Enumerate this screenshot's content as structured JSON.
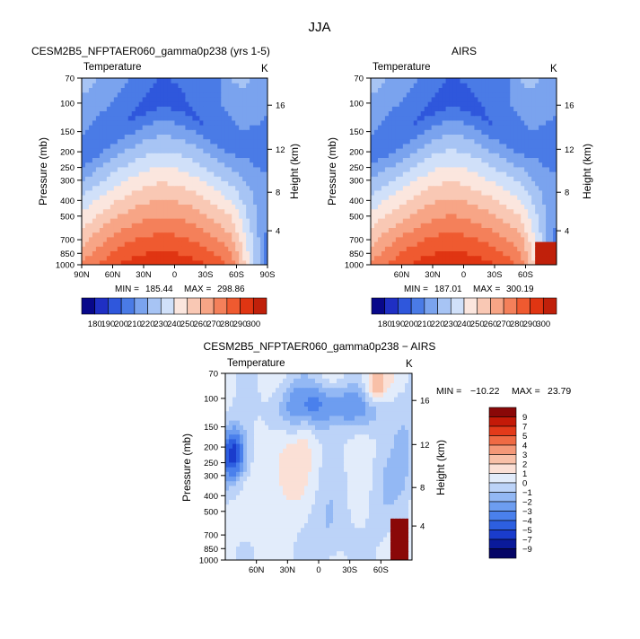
{
  "page": {
    "title": "JJA"
  },
  "colors": {
    "abs_levels": [
      "#08088a",
      "#1f2fc4",
      "#2f57dc",
      "#4a7be6",
      "#7aa3ee",
      "#a7c4f4",
      "#d0e0f9",
      "#fbe6de",
      "#f9c8b4",
      "#f7a586",
      "#f4805a",
      "#ef5a30",
      "#e03512",
      "#c0200a",
      "#7a0a06"
    ],
    "diff_levels": [
      "#050566",
      "#0a1a9a",
      "#1a3ccc",
      "#2d5fe0",
      "#4a80ec",
      "#6d9df0",
      "#93b8f4",
      "#bcd3f8",
      "#e2ecfb",
      "#fbe0d6",
      "#f8c0a8",
      "#f49878",
      "#ef6a44",
      "#e33a1a",
      "#c41a08",
      "#8a0808"
    ]
  },
  "chart_data": [
    {
      "type": "heatmap",
      "id": "model",
      "title": "CESM2B5_NFPTAER060_gamma0p238 (yrs 1-5)",
      "subtitle_left": "Temperature",
      "subtitle_right": "K",
      "ylabel": "Pressure (mb)",
      "ylabel_right": "Height (km)",
      "x_ticks": [
        "90N",
        "60N",
        "30N",
        "0",
        "30S",
        "60S",
        "90S"
      ],
      "y_ticks": [
        "70",
        "100",
        "150",
        "200",
        "250",
        "300",
        "400",
        "500",
        "700",
        "850",
        "1000"
      ],
      "y_ticks_right": [
        "16",
        "12",
        "8",
        "4"
      ],
      "xlim": [
        90,
        -90
      ],
      "ylim": [
        1000,
        70
      ],
      "stats": {
        "min_label": "MIN =",
        "min": "185.44",
        "max_label": "MAX =",
        "max": "298.86"
      },
      "colorbar_labels": [
        "180",
        "190",
        "200",
        "210",
        "220",
        "230",
        "240",
        "250",
        "260",
        "270",
        "280",
        "290",
        "300"
      ],
      "levels": [
        180,
        190,
        200,
        210,
        220,
        230,
        240,
        250,
        260,
        270,
        280,
        290,
        300
      ]
    },
    {
      "type": "heatmap",
      "id": "obs",
      "title": "AIRS",
      "subtitle_left": "Temperature",
      "subtitle_right": "K",
      "ylabel": "Pressure (mb)",
      "ylabel_right": "Height (km)",
      "x_ticks": [
        "60N",
        "30N",
        "0",
        "30S",
        "60S"
      ],
      "y_ticks": [
        "70",
        "100",
        "150",
        "200",
        "250",
        "300",
        "400",
        "500",
        "700",
        "850",
        "1000"
      ],
      "y_ticks_right": [
        "16",
        "12",
        "8",
        "4"
      ],
      "xlim": [
        90,
        -90
      ],
      "ylim": [
        1000,
        70
      ],
      "stats": {
        "min_label": "MIN =",
        "min": "187.01",
        "max_label": "MAX =",
        "max": "300.19"
      },
      "colorbar_labels": [
        "180",
        "190",
        "200",
        "210",
        "220",
        "230",
        "240",
        "250",
        "260",
        "270",
        "280",
        "290",
        "300"
      ],
      "levels": [
        180,
        190,
        200,
        210,
        220,
        230,
        240,
        250,
        260,
        270,
        280,
        290,
        300
      ]
    },
    {
      "type": "heatmap",
      "id": "diff",
      "title": "CESM2B5_NFPTAER060_gamma0p238 − AIRS",
      "subtitle_left": "Temperature",
      "subtitle_right": "K",
      "ylabel": "Pressure (mb)",
      "ylabel_right": "Height (km)",
      "x_ticks": [
        "60N",
        "30N",
        "0",
        "30S",
        "60S"
      ],
      "y_ticks": [
        "70",
        "100",
        "150",
        "200",
        "250",
        "300",
        "400",
        "500",
        "700",
        "850",
        "1000"
      ],
      "y_ticks_right": [
        "16",
        "12",
        "8",
        "4"
      ],
      "xlim": [
        90,
        -90
      ],
      "ylim": [
        1000,
        70
      ],
      "stats": {
        "min_label": "MIN =",
        "min": "−10.22",
        "max_label": "MAX =",
        "max": "23.79"
      },
      "colorbar_labels": [
        "9",
        "7",
        "5",
        "4",
        "3",
        "2",
        "1",
        "0",
        "−1",
        "−2",
        "−3",
        "−4",
        "−5",
        "−7",
        "−9"
      ],
      "levels": [
        -9,
        -7,
        -5,
        -4,
        -3,
        -2,
        -1,
        0,
        1,
        2,
        3,
        4,
        5,
        7,
        9
      ]
    }
  ]
}
